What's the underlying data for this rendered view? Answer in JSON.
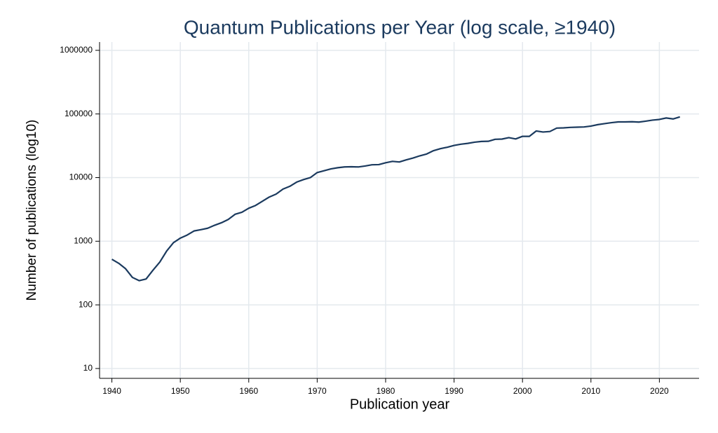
{
  "chart_data": {
    "type": "line",
    "title": "Quantum Publications per Year (log scale, ≥1940)",
    "xlabel": "Publication year",
    "ylabel": "Number of publications (log10)",
    "log_y": true,
    "grid": true,
    "x": [
      1940,
      1941,
      1942,
      1943,
      1944,
      1945,
      1946,
      1947,
      1948,
      1949,
      1950,
      1951,
      1952,
      1953,
      1954,
      1955,
      1956,
      1957,
      1958,
      1959,
      1960,
      1961,
      1962,
      1963,
      1964,
      1965,
      1966,
      1967,
      1968,
      1969,
      1970,
      1971,
      1972,
      1973,
      1974,
      1975,
      1976,
      1977,
      1978,
      1979,
      1980,
      1981,
      1982,
      1983,
      1984,
      1985,
      1986,
      1987,
      1988,
      1989,
      1990,
      1991,
      1992,
      1993,
      1994,
      1995,
      1996,
      1997,
      1998,
      1999,
      2000,
      2001,
      2002,
      2003,
      2004,
      2005,
      2006,
      2007,
      2008,
      2009,
      2010,
      2011,
      2012,
      2013,
      2014,
      2015,
      2016,
      2017,
      2018,
      2019,
      2020,
      2021,
      2022,
      2023
    ],
    "series": [
      {
        "color": "#1b3a5e",
        "values": [
          520,
          450,
          370,
          270,
          240,
          255,
          350,
          470,
          700,
          950,
          1120,
          1250,
          1450,
          1520,
          1600,
          1780,
          1950,
          2200,
          2650,
          2850,
          3300,
          3650,
          4250,
          4950,
          5500,
          6600,
          7300,
          8500,
          9300,
          10000,
          12000,
          12800,
          13700,
          14300,
          14700,
          14800,
          14700,
          15200,
          15900,
          16000,
          17100,
          18000,
          17600,
          19000,
          20300,
          22000,
          23500,
          26500,
          28500,
          30000,
          32000,
          33500,
          34500,
          36000,
          37000,
          37200,
          40000,
          40300,
          42500,
          40500,
          44500,
          44500,
          54000,
          52000,
          53000,
          60000,
          60500,
          61500,
          62000,
          62500,
          64500,
          68000,
          70500,
          73000,
          75000,
          75000,
          75500,
          74500,
          77000,
          80000,
          82000,
          86500,
          83500,
          90000
        ]
      }
    ],
    "xlim": [
      1938.2,
      2025.8
    ],
    "xticks": [
      1940,
      1950,
      1960,
      1970,
      1980,
      1990,
      2000,
      2010,
      2020
    ],
    "ylim": [
      7,
      1350000
    ],
    "yticks": [
      10,
      100,
      1000,
      10000,
      100000,
      1000000
    ]
  }
}
